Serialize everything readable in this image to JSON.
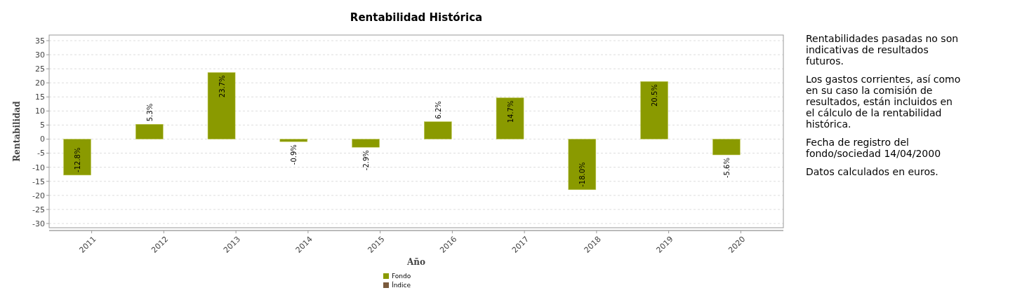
{
  "chart_data": {
    "type": "bar",
    "title": "Rentabilidad Histórica",
    "xlabel": "Año",
    "ylabel": "Rentabilidad",
    "categories": [
      "2011",
      "2012",
      "2013",
      "2014",
      "2015",
      "2016",
      "2017",
      "2018",
      "2019",
      "2020"
    ],
    "series": [
      {
        "name": "Fondo",
        "color": "#8a9a00",
        "values": [
          -12.8,
          5.3,
          23.7,
          -0.9,
          -2.9,
          6.2,
          14.7,
          -18.0,
          20.5,
          -5.6
        ],
        "value_labels": [
          "-12.8%",
          "5.3%",
          "23.7%",
          "-0.9%",
          "-2.9%",
          "6.2%",
          "14.7%",
          "-18.0%",
          "20.5%",
          "-5.6%"
        ]
      },
      {
        "name": "Índice",
        "color": "#7a5a3c",
        "values": [
          null,
          null,
          null,
          null,
          null,
          null,
          null,
          null,
          null,
          null
        ]
      }
    ],
    "ylim": [
      -31.5,
      37
    ],
    "yticks": [
      -30,
      -25,
      -20,
      -15,
      -10,
      -5,
      0,
      5,
      10,
      15,
      20,
      25,
      30,
      35
    ],
    "grid": "y",
    "legend": "bottom",
    "annotations": [
      "Rentabilidades pasadas no son indicativas de resultados futuros.",
      "Los gastos corrientes, así como en su caso la comisión de resultados, están incluidos en el cálculo de la rentabilidad histórica.",
      "Fecha de registro del fondo/sociedad 14/04/2000",
      "Datos calculados en euros."
    ]
  }
}
